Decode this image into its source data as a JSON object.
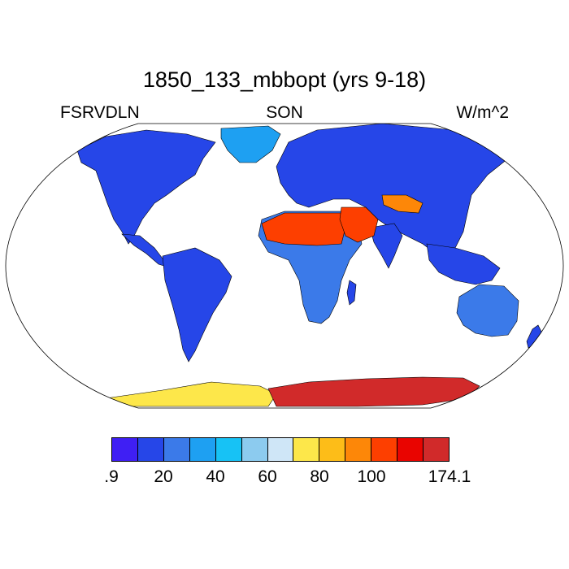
{
  "header": {
    "title": "1850_133_mbbopt (yrs 9-18)",
    "left_label": "FSRVDLN",
    "center_label": "SON",
    "right_label": "W/m^2"
  },
  "colorbar": {
    "colors": [
      "#3f1ff4",
      "#2646e8",
      "#3b7ae9",
      "#1ea0f2",
      "#17c2f5",
      "#8ccbef",
      "#cfe6f7",
      "#fde74a",
      "#fdbd18",
      "#fd8708",
      "#fd3f00",
      "#e90400",
      "#d12a2a"
    ],
    "labels": [
      {
        "text": ".9",
        "index": 0
      },
      {
        "text": "20",
        "index": 2
      },
      {
        "text": "40",
        "index": 4
      },
      {
        "text": "60",
        "index": 6
      },
      {
        "text": "80",
        "index": 8
      },
      {
        "text": "100",
        "index": 10
      },
      {
        "text": "174.1",
        "index": 13
      }
    ]
  },
  "chart_data": {
    "type": "heatmap",
    "projection": "Robinson",
    "variable": "FSRVDLN",
    "season": "SON",
    "units": "W/m^2",
    "value_range": [
      0.9,
      174.1
    ],
    "regions": [
      {
        "name": "north-america",
        "level": 1
      },
      {
        "name": "greenland",
        "level": 3
      },
      {
        "name": "south-america",
        "level": 1
      },
      {
        "name": "europe-asia",
        "level": 1
      },
      {
        "name": "africa",
        "level": 2
      },
      {
        "name": "sahara",
        "level": 10
      },
      {
        "name": "arabia",
        "level": 10
      },
      {
        "name": "tibet",
        "level": 9
      },
      {
        "name": "australia",
        "level": 2
      },
      {
        "name": "west-antarctica",
        "level": 7
      },
      {
        "name": "east-antarctica",
        "level": 12
      }
    ]
  }
}
